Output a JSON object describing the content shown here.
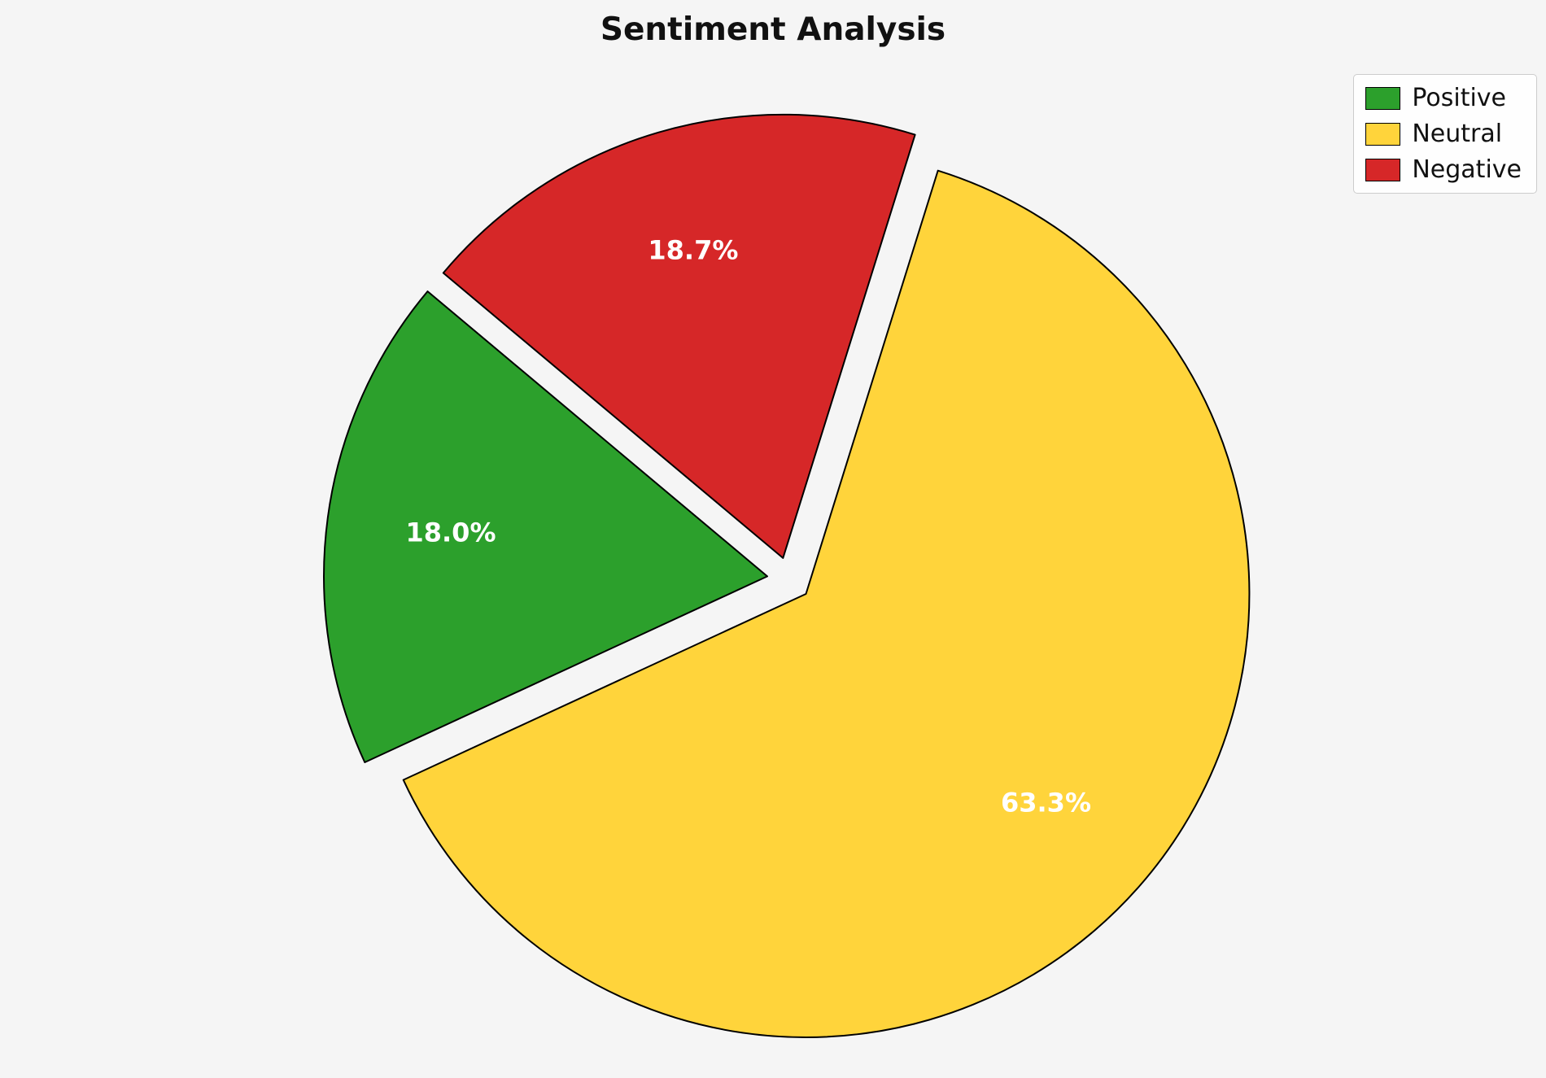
{
  "chart_data": {
    "type": "pie",
    "title": "Sentiment Analysis",
    "labels": [
      "Positive",
      "Neutral",
      "Negative"
    ],
    "values": [
      18.0,
      63.3,
      18.7
    ],
    "pct_labels": [
      "18.0%",
      "63.3%",
      "18.7%"
    ],
    "colors": [
      "#2ca02c",
      "#ffd43b",
      "#d62728"
    ],
    "edge_color": "#000000",
    "label_color": "#ffffff",
    "background_color": "#f5f5f5",
    "start_angle": 140,
    "counterclockwise": true,
    "explode": [
      0.05,
      0.05,
      0.05
    ],
    "legend_position": "upper right",
    "legend_items": [
      "Positive",
      "Neutral",
      "Negative"
    ]
  }
}
